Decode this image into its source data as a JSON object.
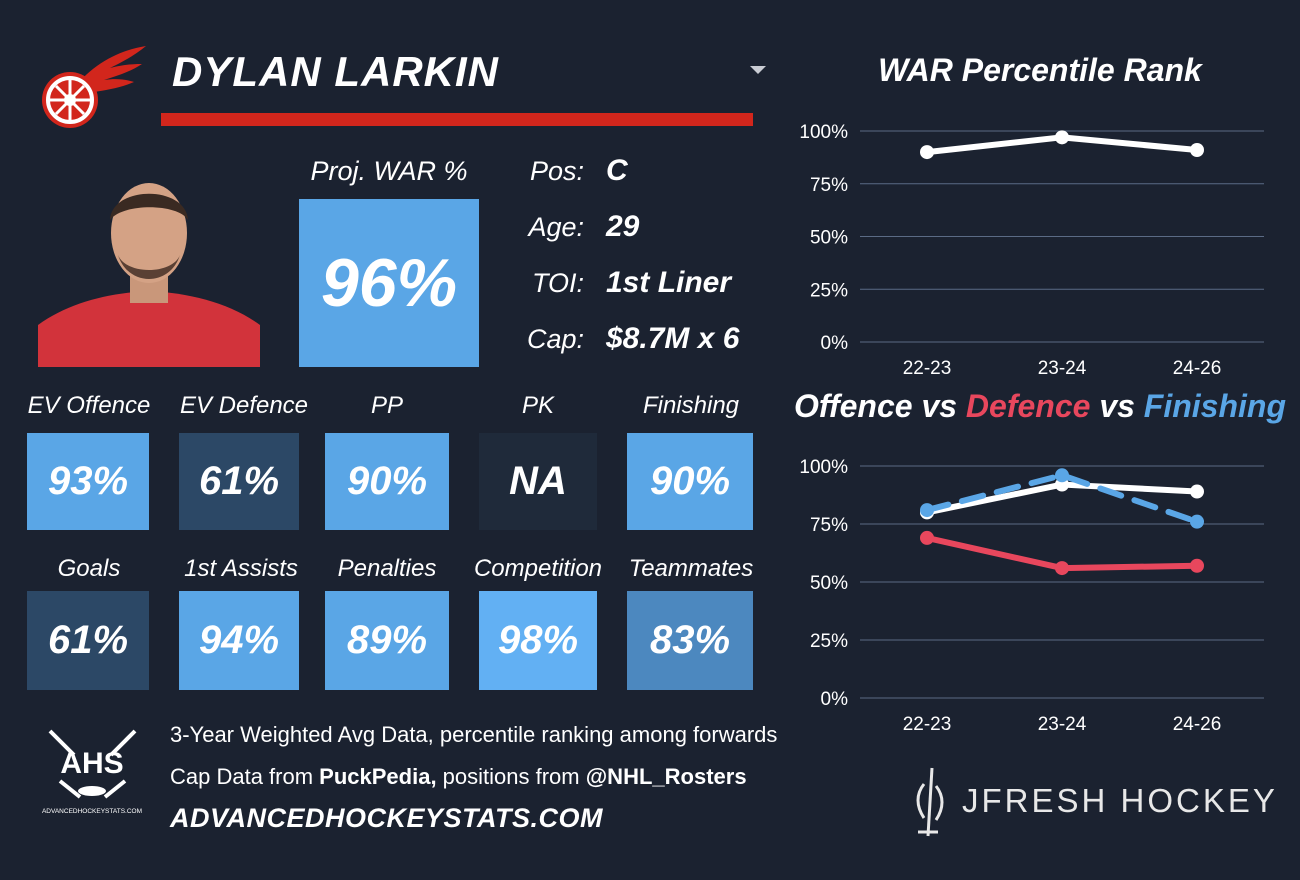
{
  "player": {
    "name": "DYLAN LARKIN",
    "proj_war_label": "Proj. WAR %",
    "proj_war_value": "96%",
    "info": [
      {
        "label": "Pos:",
        "value": "C"
      },
      {
        "label": "Age:",
        "value": "29"
      },
      {
        "label": "TOI:",
        "value": "1st Liner"
      },
      {
        "label": "Cap:",
        "value": "$8.7M x 6"
      }
    ]
  },
  "stats_row1": [
    {
      "label": "EV Offence",
      "value": "93%",
      "color": "#5aa6e6"
    },
    {
      "label": "EV Defence",
      "value": "61%",
      "color": "#2c4866"
    },
    {
      "label": "PP",
      "value": "90%",
      "color": "#5aa6e6"
    },
    {
      "label": "PK",
      "value": "NA",
      "color": "#1f2a3a"
    },
    {
      "label": "Finishing",
      "value": "90%",
      "color": "#5aa6e6"
    }
  ],
  "stats_row2": [
    {
      "label": "Goals",
      "value": "61%",
      "color": "#2c4866"
    },
    {
      "label": "1st Assists",
      "value": "94%",
      "color": "#5aa6e6"
    },
    {
      "label": "Penalties",
      "value": "89%",
      "color": "#5aa6e6"
    },
    {
      "label": "Competition",
      "value": "98%",
      "color": "#62b0f3"
    },
    {
      "label": "Teammates",
      "value": "83%",
      "color": "#4c88bf"
    }
  ],
  "footer": {
    "line1": "3-Year Weighted Avg Data, percentile ranking among forwards",
    "line2_a": "Cap Data from ",
    "line2_b": "PuckPedia,",
    "line2_c": " positions from ",
    "line2_d": "@NHL_Rosters",
    "site": "ADVANCEDHOCKEYSTATS.COM",
    "ahs_text": "AHS",
    "ahs_small": "ADVANCEDHOCKEYSTATS.COM",
    "brand": "JFRESH HOCKEY"
  },
  "colors": {
    "offence": "#ffffff",
    "defence": "#e8475d",
    "finishing": "#5aa6e6",
    "brand_red": "#d2261c"
  },
  "chart_data": [
    {
      "type": "line",
      "title": "WAR Percentile Rank",
      "categories": [
        "22-23",
        "23-24",
        "24-26"
      ],
      "series": [
        {
          "values": [
            90,
            97,
            91
          ]
        }
      ],
      "ylim": [
        0,
        100
      ],
      "yticks": [
        "100%",
        "75%",
        "50%",
        "25%",
        "0%"
      ],
      "grid": true
    },
    {
      "type": "line",
      "title_parts": [
        "Offence",
        " vs ",
        "Defence",
        " vs ",
        "Finishing"
      ],
      "categories": [
        "22-23",
        "23-24",
        "24-26"
      ],
      "series": [
        {
          "name": "Offence",
          "values": [
            80,
            92,
            89
          ]
        },
        {
          "name": "Defence",
          "values": [
            69,
            56,
            57
          ]
        },
        {
          "name": "Finishing",
          "values": [
            81,
            96,
            76
          ]
        }
      ],
      "ylim": [
        0,
        100
      ],
      "yticks": [
        "100%",
        "75%",
        "50%",
        "25%",
        "0%"
      ],
      "grid": true
    }
  ]
}
